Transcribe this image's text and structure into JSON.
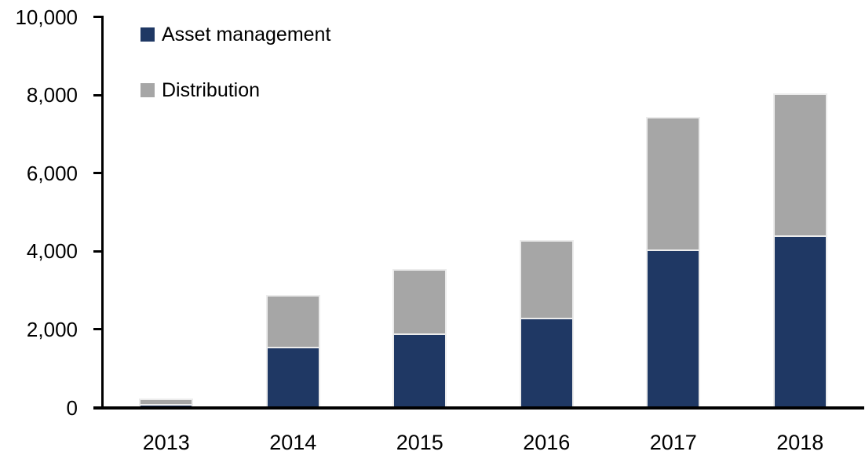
{
  "chart_data": {
    "type": "bar",
    "stacked": true,
    "title": "",
    "xlabel": "",
    "ylabel": "",
    "categories": [
      "2013",
      "2014",
      "2015",
      "2016",
      "2017",
      "2018"
    ],
    "series": [
      {
        "name": "Asset management",
        "color": "#1F3864",
        "values": [
          100,
          1550,
          1900,
          2300,
          4050,
          4400
        ]
      },
      {
        "name": "Distribution",
        "color": "#A6A6A6",
        "values": [
          100,
          1300,
          1600,
          1950,
          3350,
          3600
        ]
      }
    ],
    "totals": [
      200,
      2850,
      3500,
      4250,
      7400,
      8000
    ],
    "ylim": [
      0,
      10000
    ],
    "ytick_interval": 2000,
    "ytick_labels": [
      "0",
      "2,000",
      "4,000",
      "6,000",
      "8,000",
      "10,000"
    ],
    "grid": false,
    "legend_position": "top-left",
    "axis_color": "#000000",
    "background_color": "#FFFFFF"
  }
}
